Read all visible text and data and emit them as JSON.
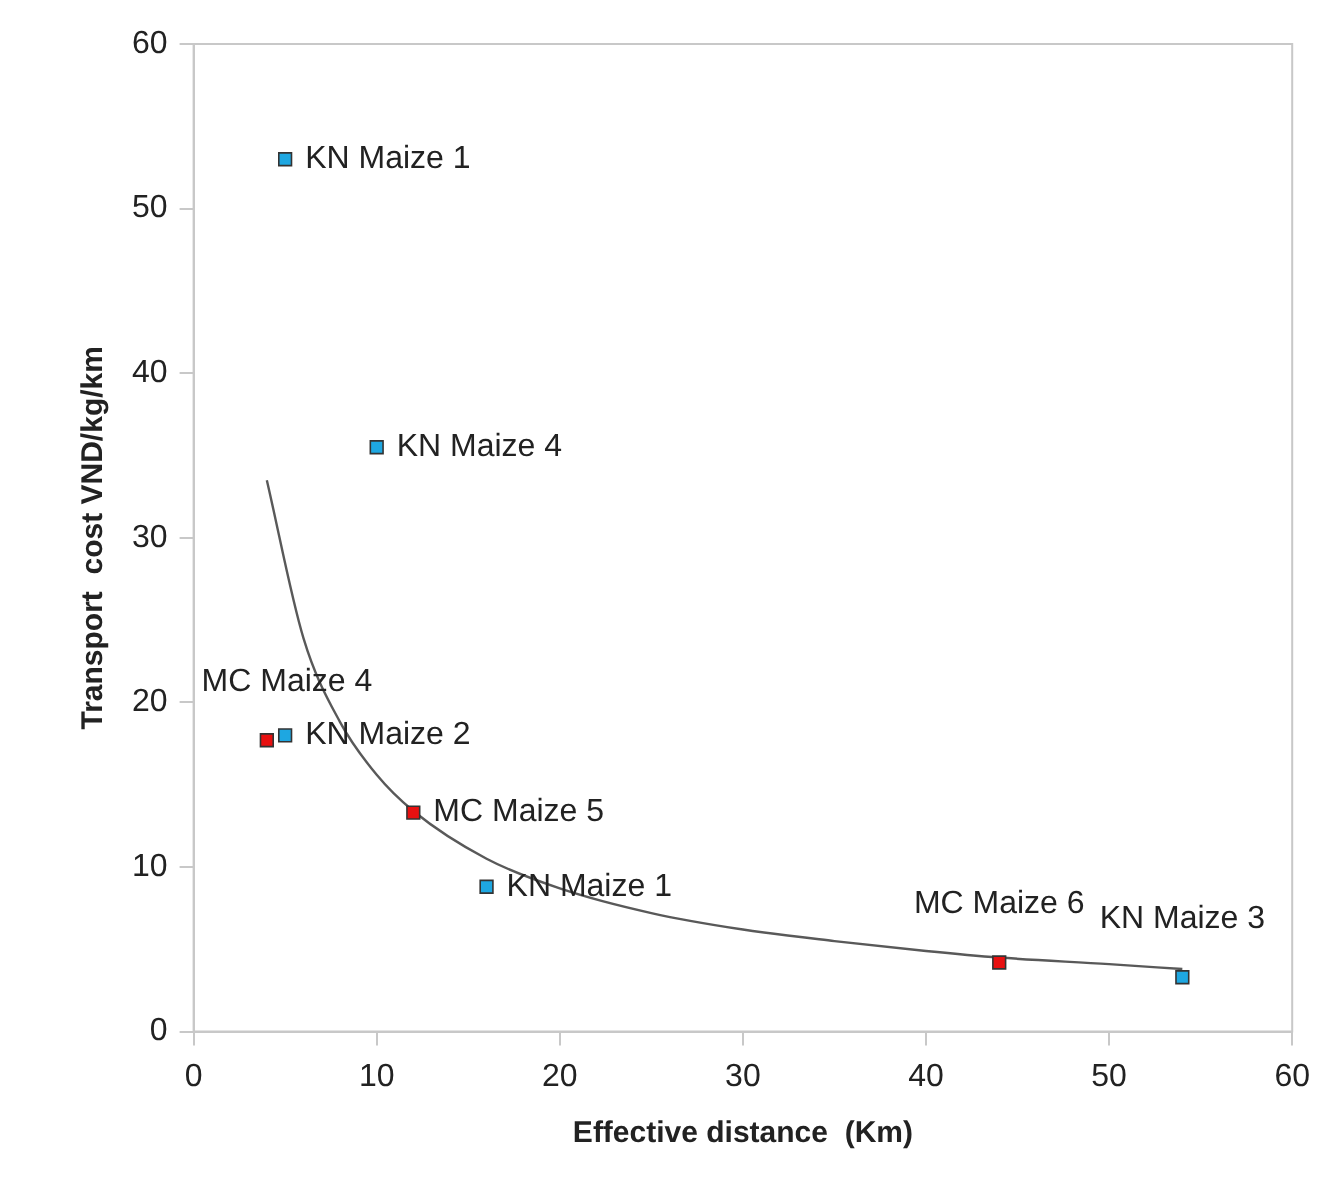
{
  "chart_data": {
    "type": "scatter",
    "xlabel": "Effective distance  (Km)",
    "ylabel": "Transport  cost VND/kg/km",
    "xlim": [
      0,
      60
    ],
    "xticks": [
      0,
      10,
      20,
      30,
      40,
      50,
      60
    ],
    "ylim": [
      0,
      60
    ],
    "yticks": [
      0,
      10,
      20,
      30,
      40,
      50,
      60
    ],
    "grid": false,
    "legend": false,
    "marker": "square",
    "series": [
      {
        "color": "#1ea7e1",
        "x": [
          5,
          10,
          5,
          16,
          54
        ],
        "values": [
          53,
          35.5,
          18,
          8.8,
          3.3
        ],
        "value_labels": [
          "KN Maize 1",
          "KN Maize 4",
          "KN Maize 2",
          "KN Maize 1",
          "KN Maize 3"
        ]
      },
      {
        "color": "#e81010",
        "x": [
          4,
          12,
          44
        ],
        "values": [
          17.7,
          13.3,
          4.2
        ],
        "value_labels": [
          "MC Maize 4",
          "MC Maize 5",
          "MC Maize 6"
        ]
      },
      {
        "type": "line",
        "color": "#595959",
        "marker": "none",
        "x": [
          4,
          6,
          8,
          10,
          12,
          16,
          20,
          25,
          30,
          35,
          40,
          44,
          50,
          54
        ],
        "values": [
          33.5,
          23.9,
          18.8,
          15.6,
          13.4,
          10.5,
          8.7,
          7.2,
          6.2,
          5.5,
          4.9,
          4.5,
          4.1,
          3.8
        ]
      }
    ]
  }
}
